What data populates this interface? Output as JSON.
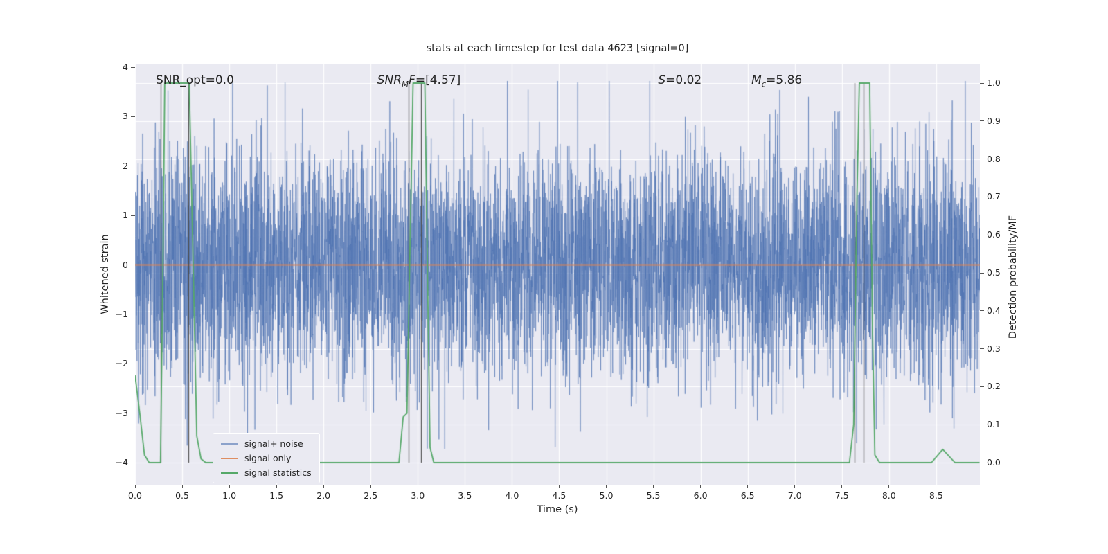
{
  "colors": {
    "figure_bg": "#ffffff",
    "plot_bg": "#eaeaf2",
    "grid": "#ffffff",
    "text": "#262626",
    "vline": "#4d4d4d"
  },
  "chart_data": {
    "type": "line",
    "title": "stats at each timestep for test data 4623 [signal=0]",
    "xlabel": "Time (s)",
    "ylabel_left": "Whitened strain",
    "ylabel_right": "Detection probability/MF",
    "xlim": [
      0,
      8.97
    ],
    "ylim_left": [
      -4.45,
      4.08
    ],
    "ylim_right": [
      -0.06,
      1.05
    ],
    "grid": true,
    "x_ticks": [
      "0.0",
      "0.5",
      "1.0",
      "1.5",
      "2.0",
      "2.5",
      "3.0",
      "3.5",
      "4.0",
      "4.5",
      "5.0",
      "5.5",
      "6.0",
      "6.5",
      "7.0",
      "7.5",
      "8.0",
      "8.5"
    ],
    "y_ticks_left": [
      "4",
      "3",
      "2",
      "1",
      "0",
      "−1",
      "−2",
      "−3",
      "−4"
    ],
    "y_ticks_right": [
      "1.0",
      "0.9",
      "0.8",
      "0.7",
      "0.6",
      "0.5",
      "0.4",
      "0.3",
      "0.2",
      "0.1",
      "0.0"
    ],
    "series": [
      {
        "name": "signal+ noise",
        "kind": "gaussian_noise",
        "axis": "left",
        "color": "#4c72b0",
        "rgba": "rgba(76,114,176,0.6)",
        "n": 6000,
        "mean": 0,
        "std": 1.15,
        "clip": 3.72,
        "seed": 20
      },
      {
        "name": "signal only",
        "kind": "constant",
        "axis": "left",
        "value": 0,
        "color": "#dd8452",
        "rgba": "rgba(221,132,82,0.9)"
      },
      {
        "name": "signal statistics",
        "kind": "line",
        "axis": "right",
        "color": "#55a868",
        "rgba": "rgba(85,168,104,1)",
        "points": [
          [
            0,
            0.23
          ],
          [
            0.05,
            0.13
          ],
          [
            0.1,
            0.02
          ],
          [
            0.15,
            0
          ],
          [
            0.27,
            0
          ],
          [
            0.295,
            0.5
          ],
          [
            0.315,
            1.0
          ],
          [
            0.575,
            1.0
          ],
          [
            0.61,
            0.6
          ],
          [
            0.655,
            0.07
          ],
          [
            0.7,
            0.01
          ],
          [
            0.75,
            0
          ],
          [
            2.8,
            0
          ],
          [
            2.845,
            0.12
          ],
          [
            2.885,
            0.13
          ],
          [
            2.92,
            0.6
          ],
          [
            2.95,
            1.0
          ],
          [
            3.075,
            1.0
          ],
          [
            3.1,
            0.55
          ],
          [
            3.13,
            0.04
          ],
          [
            3.17,
            0
          ],
          [
            7.58,
            0
          ],
          [
            7.625,
            0.1
          ],
          [
            7.66,
            0.7
          ],
          [
            7.685,
            1.0
          ],
          [
            7.795,
            1.0
          ],
          [
            7.825,
            0.35
          ],
          [
            7.85,
            0.02
          ],
          [
            7.9,
            0
          ],
          [
            8.45,
            0
          ],
          [
            8.57,
            0.035
          ],
          [
            8.7,
            0
          ],
          [
            8.96,
            0
          ]
        ]
      }
    ],
    "vlines": {
      "x": [
        0.272,
        0.566,
        2.9,
        3.035,
        7.635,
        7.73
      ],
      "ymin": 0,
      "ymax": 1,
      "color": "#4d4d4d"
    },
    "annotations": [
      {
        "x": 0.22,
        "y": 3.62,
        "segments": [
          {
            "t": "SNR_opt=0.0",
            "style": "plain"
          }
        ]
      },
      {
        "x": 2.57,
        "y": 3.62,
        "segments": [
          {
            "t": "SNR",
            "style": "italic"
          },
          {
            "t": "M",
            "style": "sub"
          },
          {
            "t": "F",
            "style": "italic"
          },
          {
            "t": "=[4.57]",
            "style": "plain"
          }
        ]
      },
      {
        "x": 5.55,
        "y": 3.62,
        "segments": [
          {
            "t": "S",
            "style": "italic"
          },
          {
            "t": "=0.02",
            "style": "plain"
          }
        ]
      },
      {
        "x": 6.54,
        "y": 3.62,
        "segments": [
          {
            "t": "M",
            "style": "italic"
          },
          {
            "t": "c",
            "style": "sub"
          },
          {
            "t": "=5.86",
            "style": "plain"
          }
        ]
      }
    ],
    "legend": {
      "position": "lower left",
      "labels": [
        "signal+ noise",
        "signal only",
        "signal statistics"
      ]
    }
  }
}
